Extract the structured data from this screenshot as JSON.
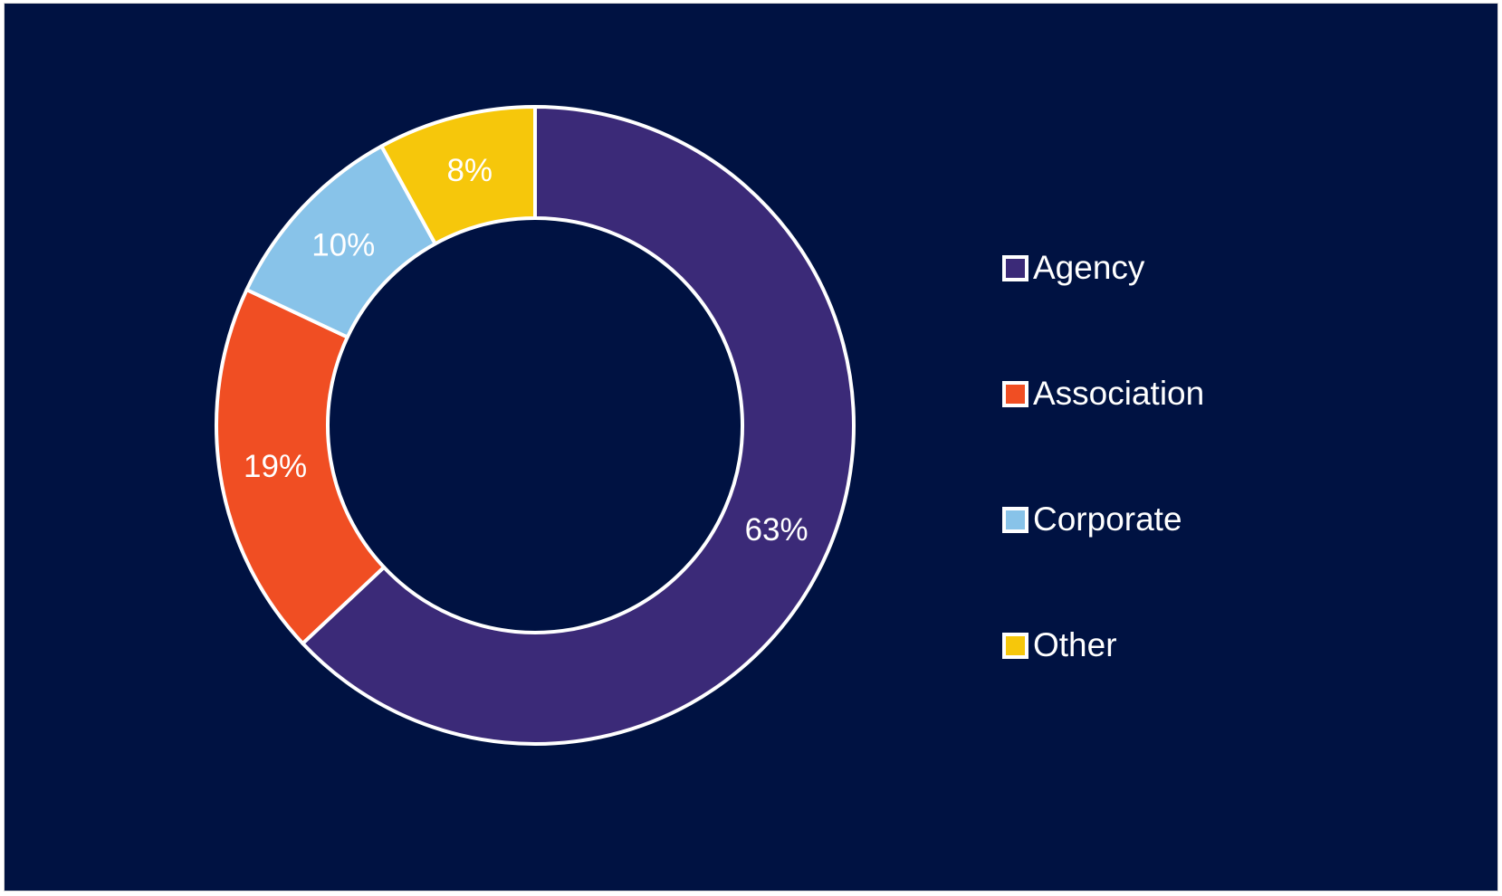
{
  "chart_data": {
    "type": "pie",
    "subtype": "doughnut",
    "categories": [
      "Agency",
      "Association",
      "Corporate",
      "Other"
    ],
    "values": [
      63,
      19,
      10,
      8
    ],
    "value_labels": [
      "63%",
      "19%",
      "10%",
      "8%"
    ],
    "colors": [
      "#3b2a78",
      "#f04e23",
      "#88c3e9",
      "#f6c70b"
    ],
    "background": "#001242",
    "slice_border_color": "#ffffff",
    "legend_position": "right",
    "title": ""
  }
}
